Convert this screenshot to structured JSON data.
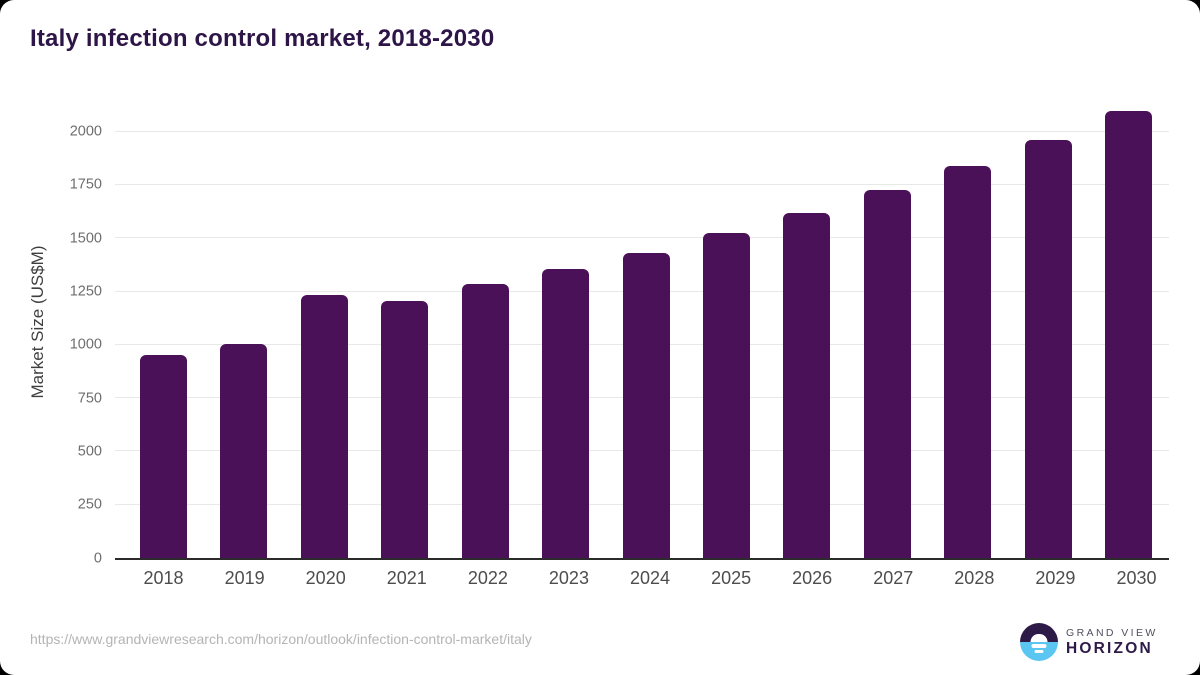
{
  "page": {
    "title": "Italy infection control market, 2018-2030",
    "source_url": "https://www.grandviewresearch.com/horizon/outlook/infection-control-market/italy",
    "logo": {
      "brand_top": "GRAND VIEW",
      "brand_bottom": "HORIZON"
    }
  },
  "colors": {
    "bar": "#4a1158",
    "title_text": "#2e1547",
    "axis_line": "#2b2b2b",
    "gridline": "#e8e8e8",
    "tick_text": "#6e6e6e",
    "logo_purple": "#2e1a47",
    "logo_blue": "#5bc6f2"
  },
  "chart_data": {
    "type": "bar",
    "title": "Italy infection control market, 2018-2030",
    "categories": [
      "2018",
      "2019",
      "2020",
      "2021",
      "2022",
      "2023",
      "2024",
      "2025",
      "2026",
      "2027",
      "2028",
      "2029",
      "2030"
    ],
    "values": [
      950,
      1005,
      1235,
      1205,
      1285,
      1355,
      1430,
      1525,
      1620,
      1725,
      1840,
      1960,
      2095
    ],
    "xlabel": "",
    "ylabel": "Market Size (US$M)",
    "yticks": [
      0,
      250,
      500,
      750,
      1000,
      1250,
      1500,
      1750,
      2000
    ],
    "ylim": [
      0,
      2125
    ],
    "grid": true,
    "legend_position": "none",
    "bar_corner_radius_px": 6
  }
}
